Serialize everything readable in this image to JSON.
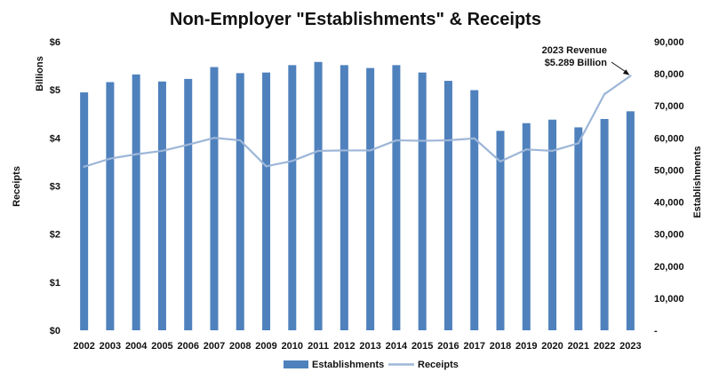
{
  "chart_data": {
    "type": "bar",
    "title": "Non-Employer \"Establishments\" & Receipts",
    "categories": [
      "2002",
      "2003",
      "2004",
      "2005",
      "2006",
      "2007",
      "2008",
      "2009",
      "2010",
      "2011",
      "2012",
      "2013",
      "2014",
      "2015",
      "2016",
      "2017",
      "2018",
      "2019",
      "2020",
      "2021",
      "2022",
      "2023"
    ],
    "series": [
      {
        "name": "Establishments",
        "kind": "bar",
        "axis": "right",
        "color": "#4f81bd",
        "values": [
          74200,
          77400,
          79800,
          77600,
          78400,
          82100,
          80200,
          80400,
          82700,
          83700,
          82700,
          81800,
          82700,
          80400,
          77800,
          74900,
          62200,
          64600,
          65700,
          63300,
          65900,
          68300
        ]
      },
      {
        "name": "Receipts",
        "kind": "line",
        "axis": "left",
        "color": "#9db6d8",
        "values": [
          3.4,
          3.57,
          3.66,
          3.73,
          3.86,
          4.0,
          3.95,
          3.41,
          3.52,
          3.73,
          3.74,
          3.74,
          3.95,
          3.94,
          3.95,
          3.99,
          3.51,
          3.76,
          3.73,
          3.89,
          4.91,
          5.289
        ]
      }
    ],
    "left_axis": {
      "label_top": "Billions",
      "label": "Receipts",
      "ylim": [
        0,
        6
      ],
      "ticks": [
        0,
        1,
        2,
        3,
        4,
        5,
        6
      ],
      "tick_labels": [
        "$0",
        "$1",
        "$2",
        "$3",
        "$4",
        "$5",
        "$6"
      ]
    },
    "right_axis": {
      "label": "Establishments",
      "ylim": [
        0,
        90000
      ],
      "ticks": [
        0,
        10000,
        20000,
        30000,
        40000,
        50000,
        60000,
        70000,
        80000,
        90000
      ],
      "tick_labels": [
        "-",
        "10,000",
        "20,000",
        "30,000",
        "40,000",
        "50,000",
        "60,000",
        "70,000",
        "80,000",
        "90,000"
      ]
    },
    "annotation": {
      "lines": [
        "2023 Revenue",
        "$5.289 Billion"
      ],
      "target_category": "2023",
      "target_series": "Receipts"
    },
    "legend": {
      "placement": "bottom",
      "items": [
        "Establishments",
        "Receipts"
      ]
    },
    "grid": false
  }
}
